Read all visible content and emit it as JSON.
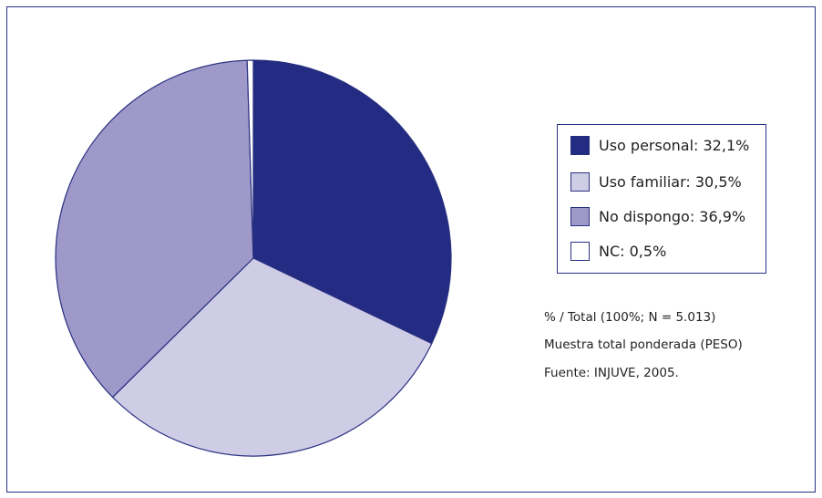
{
  "chart_data": {
    "type": "pie",
    "categories": [
      "Uso personal:",
      "Uso familiar:",
      "No dispongo:",
      "NC:"
    ],
    "values": [
      32.1,
      30.5,
      36.9,
      0.5
    ],
    "value_labels": [
      "32,1%",
      "30,5%",
      "36,9%",
      "0,5%"
    ],
    "colors": [
      "#232c82",
      "#cfcce6",
      "#9e99c8",
      "#ffffff"
    ],
    "notes": [
      "% / Total (100%; N = 5.013)",
      "Muestra total ponderada (PESO)",
      "Fuente: INJUVE, 2005."
    ]
  }
}
